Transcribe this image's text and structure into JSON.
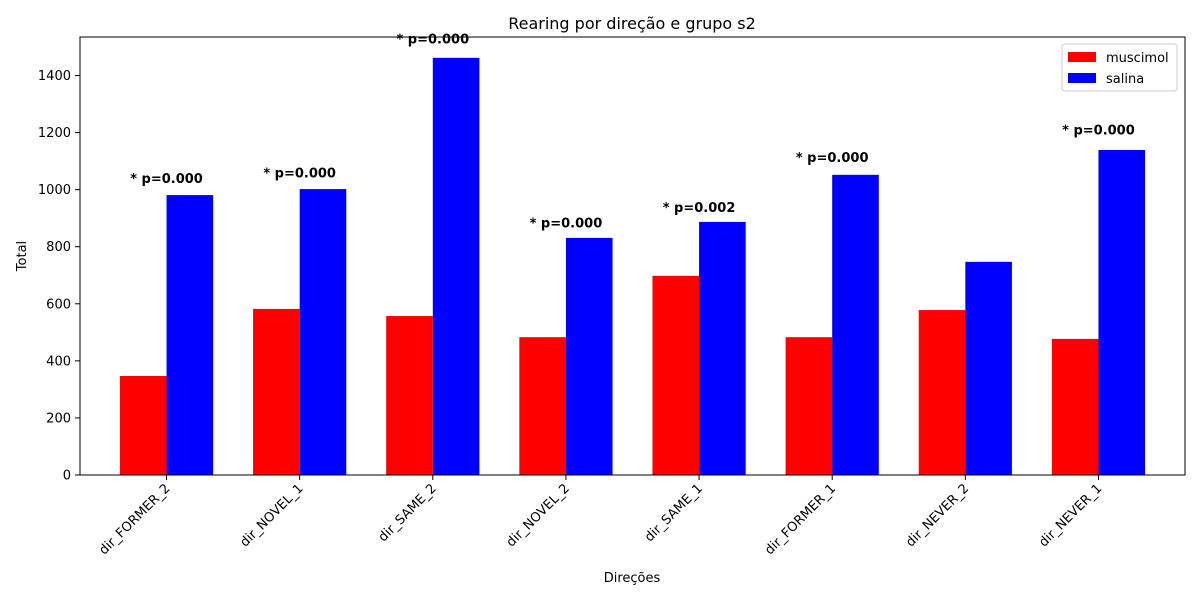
{
  "chart_data": {
    "type": "bar",
    "title": "Rearing por direção e grupo s2",
    "xlabel": "Direções",
    "ylabel": "Total",
    "ylim": [
      0,
      1535
    ],
    "yticks": [
      0,
      200,
      400,
      600,
      800,
      1000,
      1200,
      1400
    ],
    "grid": false,
    "legend_position": "top-right",
    "categories": [
      "dir_FORMER_2",
      "dir_NOVEL_1",
      "dir_SAME_2",
      "dir_NOVEL_2",
      "dir_SAME_1",
      "dir_FORMER_1",
      "dir_NEVER_2",
      "dir_NEVER_1"
    ],
    "series": [
      {
        "name": "muscimol",
        "color": "#ff0000",
        "values": [
          347,
          582,
          557,
          483,
          698,
          483,
          578,
          477
        ]
      },
      {
        "name": "salina",
        "color": "#0000ff",
        "values": [
          981,
          1002,
          1462,
          831,
          887,
          1052,
          747,
          1139
        ]
      }
    ],
    "annotations": [
      {
        "category": "dir_FORMER_2",
        "text": "* p=0.000",
        "value": 1040
      },
      {
        "category": "dir_NOVEL_1",
        "text": "* p=0.000",
        "value": 1060
      },
      {
        "category": "dir_SAME_2",
        "text": "* p=0.000",
        "value": 1530
      },
      {
        "category": "dir_NOVEL_2",
        "text": "* p=0.000",
        "value": 885
      },
      {
        "category": "dir_SAME_1",
        "text": "* p=0.002",
        "value": 940
      },
      {
        "category": "dir_FORMER_1",
        "text": "* p=0.000",
        "value": 1115
      },
      {
        "category": "dir_NEVER_1",
        "text": "* p=0.000",
        "value": 1210
      }
    ]
  }
}
